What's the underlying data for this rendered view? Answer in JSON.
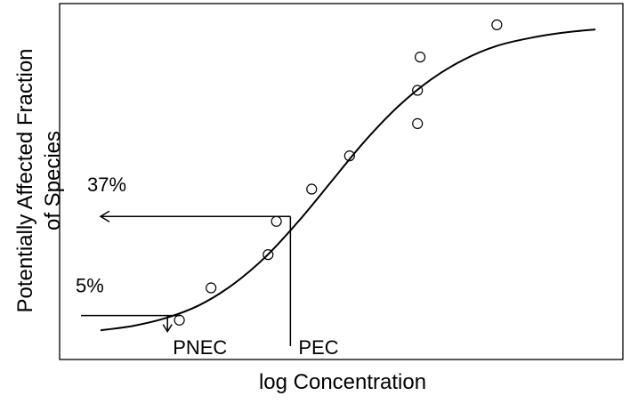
{
  "chart_data": {
    "type": "scatter",
    "title": "",
    "xlabel": "log Concentration",
    "ylabel_lines": [
      "Potentially Affected Fraction",
      "of Species"
    ],
    "axis_ticks_shown": false,
    "grid": false,
    "xlim": [
      0,
      100
    ],
    "ylim": [
      0,
      100
    ],
    "points": [
      {
        "x": 18.8,
        "y": 7.9
      },
      {
        "x": 24.9,
        "y": 17.7
      },
      {
        "x": 35.9,
        "y": 27.8
      },
      {
        "x": 37.5,
        "y": 37.9
      },
      {
        "x": 44.3,
        "y": 47.7
      },
      {
        "x": 51.6,
        "y": 57.8
      },
      {
        "x": 64.7,
        "y": 67.6
      },
      {
        "x": 64.7,
        "y": 77.7
      },
      {
        "x": 65.2,
        "y": 87.8
      },
      {
        "x": 80.0,
        "y": 97.6
      }
    ],
    "fitted_curve": {
      "name": "",
      "style": "solid",
      "x": [
        3.6,
        10,
        16.3,
        22.7,
        29,
        35.4,
        41.8,
        48.2,
        54.5,
        60.9,
        67.3,
        73.6,
        80,
        86.4,
        92.7,
        99
      ],
      "y": [
        4.8,
        6.2,
        8.6,
        12.5,
        18.6,
        27.1,
        38.0,
        50.2,
        62.2,
        72.7,
        81.0,
        87.0,
        91.2,
        93.6,
        95.2,
        96.2
      ]
    },
    "annotations": [
      {
        "text": "37%",
        "y": 39.4,
        "x_from": 40.2,
        "x_to": 3.6,
        "kind": "arrow-left"
      },
      {
        "text": "PEC",
        "x": 40.2,
        "kind": "vertical-drop"
      },
      {
        "text": "5%",
        "y": 9.3,
        "kind": "horizontal-line"
      },
      {
        "text": "PNEC",
        "x": 16.5,
        "kind": "arrow-down"
      }
    ]
  }
}
